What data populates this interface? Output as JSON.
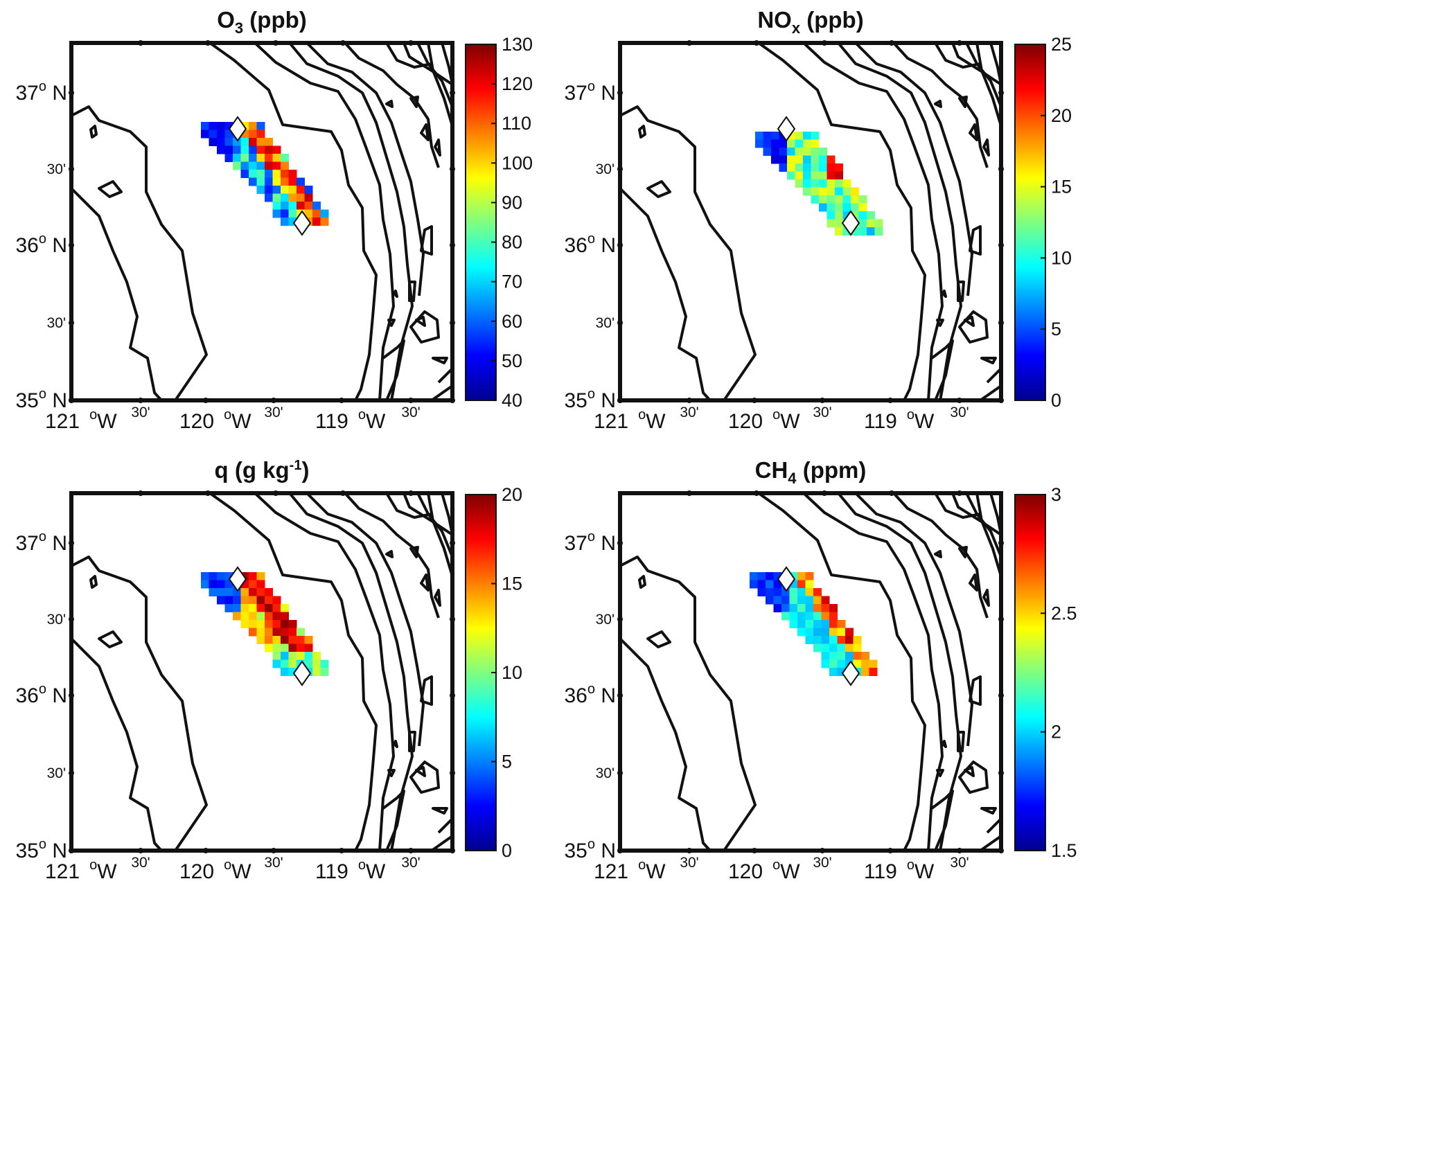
{
  "figure": {
    "panels": [
      {
        "id": "o3",
        "title": {
          "base": "O",
          "sub": "3",
          "sup": "",
          "rest": " (ppb)"
        },
        "colorbar": {
          "min": 40,
          "max": 130,
          "ticks": [
            "40",
            "50",
            "60",
            "70",
            "80",
            "90",
            "100",
            "110",
            "120",
            "130"
          ]
        }
      },
      {
        "id": "nox",
        "title": {
          "base": "NO",
          "sub": "x",
          "sup": "",
          "rest": " (ppb)"
        },
        "colorbar": {
          "min": 0,
          "max": 25,
          "ticks": [
            "0",
            "5",
            "10",
            "15",
            "20",
            "25"
          ]
        }
      },
      {
        "id": "q",
        "title": {
          "base": "q (g kg",
          "sub": "",
          "sup": "-1",
          "rest": ")"
        },
        "colorbar": {
          "min": 0,
          "max": 20,
          "ticks": [
            "0",
            "5",
            "10",
            "15",
            "20"
          ]
        }
      },
      {
        "id": "ch4",
        "title": {
          "base": "CH",
          "sub": "4",
          "sup": "",
          "rest": " (ppm)"
        },
        "colorbar": {
          "min": 1.5,
          "max": 3,
          "ticks": [
            "1.5",
            "2",
            "2.5",
            "3"
          ]
        }
      }
    ],
    "lat_labels": [
      {
        "deg": "37",
        "deg_sym": "o",
        "hemi": " N",
        "minor": false
      },
      {
        "deg": "30'",
        "minor": true
      },
      {
        "deg": "36",
        "deg_sym": "o",
        "hemi": " N",
        "minor": false
      },
      {
        "deg": "30'",
        "minor": true
      },
      {
        "deg": "35",
        "deg_sym": "o",
        "hemi": " N",
        "minor": false
      }
    ],
    "lon_labels": [
      {
        "deg": "121",
        "deg_sym": "o",
        "hemi": "W",
        "minor": false
      },
      {
        "deg": "30'",
        "minor": true
      },
      {
        "deg": "120",
        "deg_sym": "o",
        "hemi": "W",
        "minor": false
      },
      {
        "deg": "30'",
        "minor": true
      },
      {
        "deg": "119",
        "deg_sym": "o",
        "hemi": "W",
        "minor": false
      },
      {
        "deg": "30'",
        "minor": true
      }
    ],
    "colormap": "jet",
    "colors": {
      "contour": "#111111",
      "frame": "#111111",
      "marker_fill": "#ffffff"
    }
  }
}
